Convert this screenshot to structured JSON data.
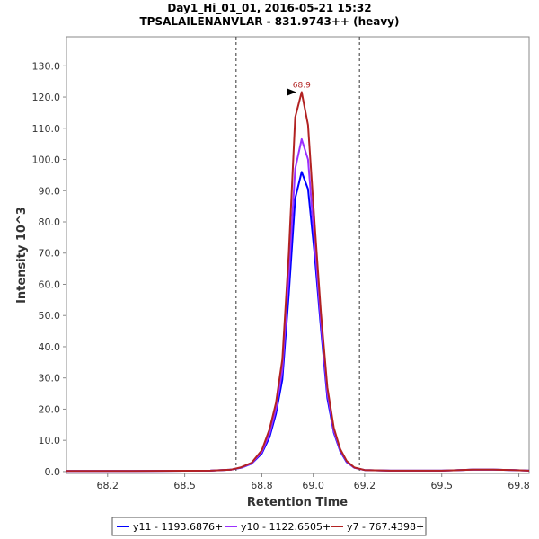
{
  "chart_data": {
    "type": "line",
    "title": "Day1_Hi_01_01, 2016-05-21 15:32",
    "subtitle": "TPSALAILENANVLAR - 831.9743++ (heavy)",
    "xlabel": "Retention Time",
    "ylabel": "Intensity 10^3",
    "xlim": [
      68.04,
      69.84
    ],
    "ylim": [
      -0.6,
      139.3
    ],
    "x_ticks": [
      "68.2",
      "68.5",
      "68.8",
      "69.0",
      "69.2",
      "69.5",
      "69.8"
    ],
    "x_tick_values": [
      68.2,
      68.5,
      68.8,
      69.0,
      69.2,
      69.5,
      69.8
    ],
    "y_ticks": [
      "0.0",
      "10.0",
      "20.0",
      "30.0",
      "40.0",
      "50.0",
      "60.0",
      "70.0",
      "80.0",
      "90.0",
      "100.0",
      "110.0",
      "120.0",
      "130.0"
    ],
    "y_tick_values": [
      0,
      10,
      20,
      30,
      40,
      50,
      60,
      70,
      80,
      90,
      100,
      110,
      120,
      130
    ],
    "vlines": [
      68.7,
      69.18
    ],
    "peak_annotation": {
      "text": "68.9",
      "x": 68.955,
      "y": 121.6,
      "color": "#b22222"
    },
    "legend_position": "bottom",
    "series": [
      {
        "name": "y11 - 1193.6876+",
        "color": "#0000ff",
        "x": [
          68.04,
          68.3,
          68.6,
          68.68,
          68.72,
          68.76,
          68.8,
          68.83,
          68.855,
          68.88,
          68.905,
          68.93,
          68.955,
          68.98,
          69.005,
          69.03,
          69.055,
          69.08,
          69.105,
          69.13,
          69.16,
          69.2,
          69.3,
          69.5,
          69.62,
          69.7,
          69.78,
          69.84
        ],
        "values": [
          0.2,
          0.2,
          0.3,
          0.6,
          1.2,
          2.5,
          5.8,
          11,
          18.5,
          29.5,
          57,
          87.5,
          96,
          90.5,
          70,
          46,
          23.5,
          12.5,
          6.5,
          3.0,
          1.2,
          0.5,
          0.3,
          0.3,
          0.6,
          0.6,
          0.5,
          0.3
        ]
      },
      {
        "name": "y10 - 1122.6505+",
        "color": "#9b30ff",
        "x": [
          68.04,
          68.3,
          68.6,
          68.68,
          68.72,
          68.76,
          68.8,
          68.83,
          68.855,
          68.88,
          68.905,
          68.93,
          68.955,
          68.98,
          69.005,
          69.03,
          69.055,
          69.08,
          69.105,
          69.13,
          69.16,
          69.2,
          69.3,
          69.5,
          69.62,
          69.7,
          69.78,
          69.84
        ],
        "values": [
          0.2,
          0.2,
          0.3,
          0.6,
          1.3,
          2.6,
          6.2,
          12,
          20,
          32.5,
          63,
          97,
          106.5,
          100,
          74,
          48,
          25,
          13,
          6.8,
          3.2,
          1.2,
          0.5,
          0.3,
          0.3,
          0.6,
          0.6,
          0.5,
          0.3
        ]
      },
      {
        "name": "y7 - 767.4398+",
        "color": "#b22222",
        "x": [
          68.04,
          68.3,
          68.6,
          68.68,
          68.72,
          68.76,
          68.8,
          68.83,
          68.855,
          68.88,
          68.905,
          68.93,
          68.955,
          68.98,
          69.005,
          69.03,
          69.055,
          69.08,
          69.105,
          69.13,
          69.16,
          69.2,
          69.3,
          69.5,
          69.62,
          69.7,
          69.78,
          69.84
        ],
        "values": [
          0.2,
          0.2,
          0.3,
          0.6,
          1.4,
          2.8,
          6.8,
          13.5,
          22,
          36,
          70,
          113.5,
          121.6,
          111,
          80,
          51,
          27,
          14,
          7.2,
          3.4,
          1.3,
          0.5,
          0.3,
          0.3,
          0.6,
          0.6,
          0.5,
          0.3
        ]
      }
    ]
  }
}
